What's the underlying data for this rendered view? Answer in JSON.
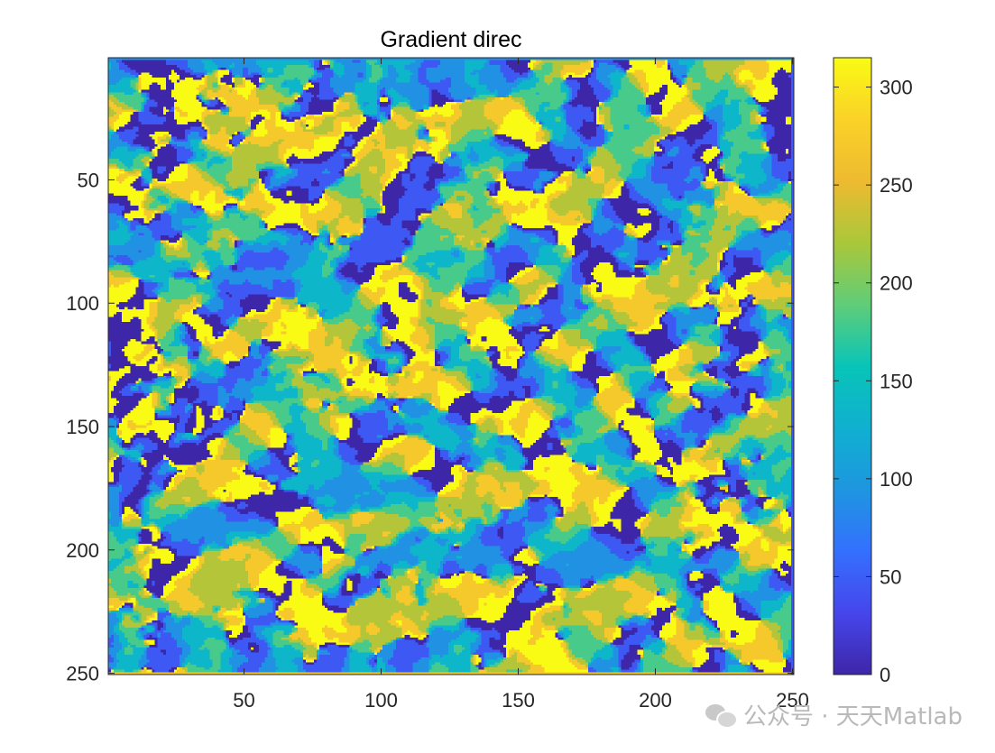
{
  "chart_data": {
    "type": "heatmap",
    "title": "Gradient direc",
    "x_range": [
      1,
      250
    ],
    "y_range": [
      1,
      250
    ],
    "x_ticks": [
      50,
      100,
      150,
      200,
      250
    ],
    "y_ticks": [
      50,
      100,
      150,
      200,
      250
    ],
    "y_direction": "reverse",
    "colormap": "parula",
    "color_range": [
      0,
      315
    ],
    "colorbar_ticks": [
      0,
      50,
      100,
      150,
      200,
      250,
      300
    ],
    "colorbar_position": "right",
    "value_levels": [
      0,
      45,
      90,
      135,
      180,
      225,
      270,
      315
    ],
    "grid": false
  },
  "watermark": {
    "text": "公众号 · 天天Matlab",
    "icon": "wechat-icon"
  }
}
